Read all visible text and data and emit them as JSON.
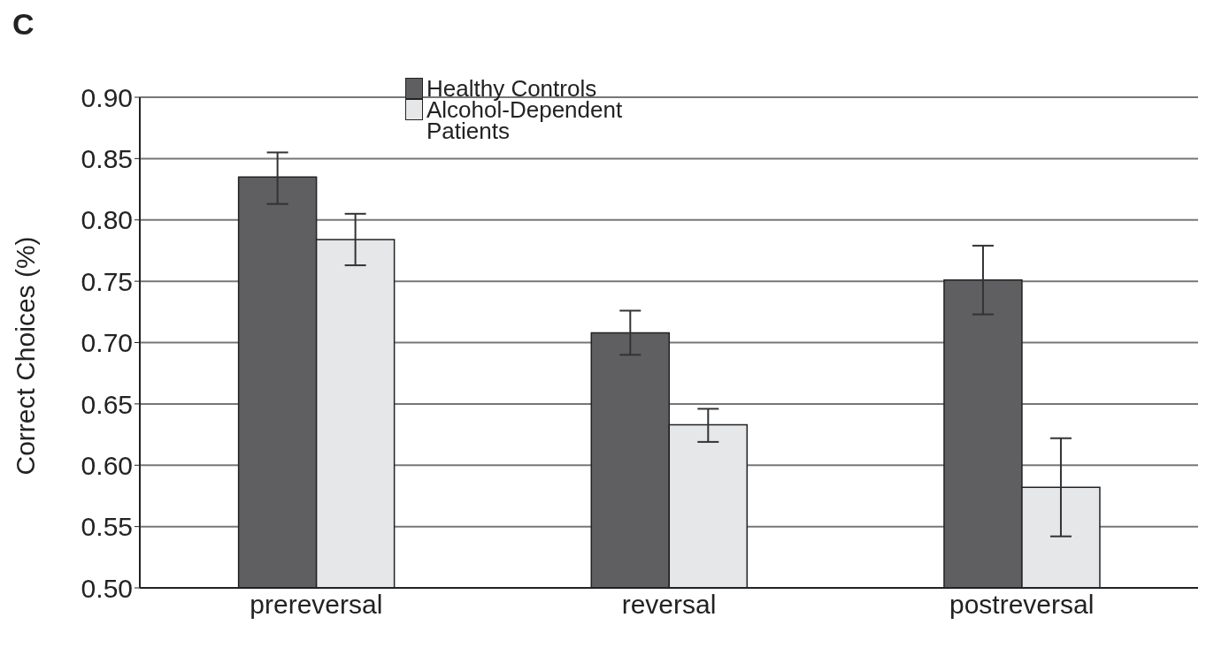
{
  "chart_data": {
    "type": "bar",
    "ylabel": "Correct Choices (%)",
    "annotations": [
      "C"
    ],
    "categories": [
      "prereversal",
      "reversal",
      "postreversal"
    ],
    "series": [
      {
        "name": "Healthy Controls",
        "color": "#5f5f61",
        "values": [
          0.835,
          0.708,
          0.751
        ],
        "errors": [
          [
            0.813,
            0.855
          ],
          [
            0.69,
            0.726
          ],
          [
            0.723,
            0.779
          ]
        ]
      },
      {
        "name": "Alcohol-Dependent Patients",
        "color": "#e6e7e9",
        "values": [
          0.784,
          0.633,
          0.582
        ],
        "errors": [
          [
            0.763,
            0.805
          ],
          [
            0.619,
            0.646
          ],
          [
            0.542,
            0.622
          ]
        ]
      }
    ],
    "ylim": [
      0.5,
      0.9
    ],
    "yticks": [
      {
        "value": 0.5,
        "label": "0.50"
      },
      0.55,
      {
        "value": 0.6,
        "label": "0.60"
      },
      0.65,
      {
        "value": 0.7,
        "label": "0.70"
      },
      0.75,
      {
        "value": 0.8,
        "label": "0.80"
      },
      0.85,
      {
        "value": 0.9,
        "label": "0.90"
      }
    ],
    "grid": "y",
    "legend": "top"
  }
}
